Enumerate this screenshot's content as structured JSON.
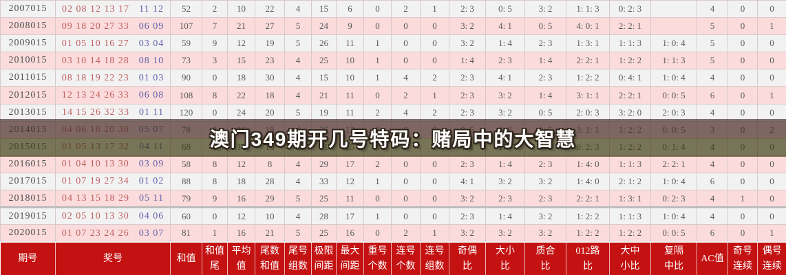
{
  "banner": {
    "text": "澳门349期开几号特码：赌局中的大智慧"
  },
  "colors": {
    "header_red": "#c41112",
    "row_plain": "#f2f2f3",
    "row_pink": "#fbdbdb",
    "red_number": "#c06060",
    "blue_number": "#6161aa",
    "banner_overlay_top": "rgba(66,46,40,0.68)",
    "banner_overlay_bottom": "rgba(62,56,14,0.68)"
  },
  "table": {
    "columns": [
      {
        "key": "period",
        "label": "期号"
      },
      {
        "key": "numbers",
        "label": "奖号"
      },
      {
        "key": "sum",
        "label": "和值"
      },
      {
        "key": "sum_tail",
        "label": "和值\n尾"
      },
      {
        "key": "avg",
        "label": "平均\n值"
      },
      {
        "key": "tail_sum",
        "label": "尾数\n和值"
      },
      {
        "key": "tail_groups",
        "label": "尾号\n组数"
      },
      {
        "key": "limit_span",
        "label": "极限\n间距"
      },
      {
        "key": "max_gap",
        "label": "最大\n间距"
      },
      {
        "key": "repeat_count",
        "label": "重号\n个数"
      },
      {
        "key": "consecutive_count",
        "label": "连号\n个数"
      },
      {
        "key": "consecutive_groups",
        "label": "连号\n组数"
      },
      {
        "key": "odd_even_ratio",
        "label": "奇偶\n比"
      },
      {
        "key": "big_small_ratio",
        "label": "大小\n比"
      },
      {
        "key": "prime_composite_ratio",
        "label": "质合\n比"
      },
      {
        "key": "route012_ratio",
        "label": "012路\n比"
      },
      {
        "key": "big_mid_small_ratio",
        "label": "大中\n小比"
      },
      {
        "key": "repeat_skip_mid_ratio",
        "label": "复隔\n中比"
      },
      {
        "key": "ac_value",
        "label": "AC值"
      },
      {
        "key": "odd_streak",
        "label": "奇号\n连续"
      },
      {
        "key": "even_streak",
        "label": "偶号\n连续"
      }
    ],
    "rows": [
      {
        "period": "2007015",
        "reds": "02 08 12 13 17",
        "blues": "11 12",
        "values": [
          "52",
          "2",
          "10",
          "22",
          "4",
          "15",
          "6",
          "0",
          "2",
          "1",
          "2: 3",
          "0: 5",
          "3: 2",
          "1: 1: 3",
          "0: 2: 3",
          "",
          "4",
          "0",
          "0"
        ]
      },
      {
        "period": "2008015",
        "reds": "09 18 20 27 33",
        "blues": "06 09",
        "values": [
          "107",
          "7",
          "21",
          "27",
          "5",
          "24",
          "9",
          "0",
          "0",
          "0",
          "3: 2",
          "4: 1",
          "0: 5",
          "4: 0: 1",
          "2: 2: 1",
          "",
          "5",
          "0",
          "1"
        ]
      },
      {
        "period": "2009015",
        "reds": "01 05 10 16 27",
        "blues": "03 04",
        "values": [
          "59",
          "9",
          "12",
          "19",
          "5",
          "26",
          "11",
          "1",
          "0",
          "0",
          "3: 2",
          "1: 4",
          "2: 3",
          "1: 3: 1",
          "1: 1: 3",
          "1: 0: 4",
          "5",
          "0",
          "0"
        ]
      },
      {
        "period": "2010015",
        "reds": "03 10 14 18 28",
        "blues": "08 10",
        "values": [
          "73",
          "3",
          "15",
          "23",
          "4",
          "25",
          "10",
          "1",
          "0",
          "0",
          "1: 4",
          "2: 3",
          "1: 4",
          "2: 2: 1",
          "1: 2: 2",
          "1: 1: 3",
          "5",
          "0",
          "0"
        ]
      },
      {
        "period": "2011015",
        "reds": "08 18 19 22 23",
        "blues": "01 03",
        "values": [
          "90",
          "0",
          "18",
          "30",
          "4",
          "15",
          "10",
          "1",
          "4",
          "2",
          "2: 3",
          "4: 1",
          "2: 3",
          "1: 2: 2",
          "0: 4: 1",
          "1: 0: 4",
          "4",
          "0",
          "0"
        ]
      },
      {
        "period": "2012015",
        "reds": "12 13 24 26 33",
        "blues": "06 08",
        "values": [
          "108",
          "8",
          "22",
          "18",
          "4",
          "21",
          "11",
          "0",
          "2",
          "1",
          "2: 3",
          "3: 2",
          "1: 4",
          "3: 1: 1",
          "2: 2: 1",
          "0: 0: 5",
          "6",
          "0",
          "1"
        ]
      },
      {
        "period": "2013015",
        "reds": "14 15 26 32 33",
        "blues": "01 11",
        "values": [
          "120",
          "0",
          "24",
          "20",
          "5",
          "19",
          "11",
          "2",
          "4",
          "2",
          "2: 3",
          "3: 2",
          "0: 5",
          "2: 0: 3",
          "3: 2: 0",
          "2: 0: 3",
          "4",
          "0",
          "0"
        ]
      },
      {
        "period": "2014015",
        "reds": "04 06 18 20 30",
        "blues": "05 07",
        "values": [
          "78",
          "8",
          "16",
          "18",
          "4",
          "26",
          "12",
          "0",
          "0",
          "0",
          "0: 5",
          "3: 2",
          "0: 5",
          "3: 1: 1",
          "1: 2: 2",
          "0: 0: 5",
          "3",
          "0",
          "2"
        ]
      },
      {
        "period": "2015015",
        "reds": "01 05 13 17 32",
        "blues": "04 11",
        "values": [
          "68",
          "8",
          "14",
          "18",
          "5",
          "31",
          "15",
          "0",
          "0",
          "0",
          "4: 1",
          "1: 4",
          "4: 1",
          "0: 2: 3",
          "1: 2: 2",
          "0: 1: 4",
          "4",
          "0",
          "0"
        ]
      },
      {
        "period": "2016015",
        "reds": "01 04 10 13 30",
        "blues": "03 09",
        "values": [
          "58",
          "8",
          "12",
          "8",
          "4",
          "29",
          "17",
          "2",
          "0",
          "0",
          "2: 3",
          "1: 4",
          "2: 3",
          "1: 4: 0",
          "1: 1: 3",
          "2: 2: 1",
          "4",
          "0",
          "0"
        ]
      },
      {
        "period": "2017015",
        "reds": "01 07 19 27 34",
        "blues": "01 02",
        "values": [
          "88",
          "8",
          "18",
          "28",
          "4",
          "33",
          "12",
          "1",
          "0",
          "0",
          "4: 1",
          "3: 2",
          "3: 2",
          "1: 4: 0",
          "2: 1: 2",
          "1: 0: 4",
          "6",
          "0",
          "0"
        ]
      },
      {
        "period": "2018015",
        "reds": "04 13 15 18 29",
        "blues": "05 11",
        "values": [
          "79",
          "9",
          "16",
          "29",
          "5",
          "25",
          "11",
          "0",
          "0",
          "0",
          "3: 2",
          "2: 3",
          "2: 3",
          "2: 2: 1",
          "1: 3: 1",
          "0: 2: 3",
          "4",
          "1",
          "0"
        ]
      },
      {
        "period": "2019015",
        "reds": "02 05 10 13 30",
        "blues": "04 06",
        "values": [
          "60",
          "0",
          "12",
          "10",
          "4",
          "28",
          "17",
          "1",
          "0",
          "0",
          "2: 3",
          "1: 4",
          "3: 2",
          "1: 2: 2",
          "1: 1: 3",
          "1: 0: 4",
          "4",
          "0",
          "0"
        ]
      },
      {
        "period": "2020015",
        "reds": "01 07 23 24 26",
        "blues": "03 07",
        "values": [
          "81",
          "1",
          "16",
          "21",
          "5",
          "25",
          "16",
          "0",
          "2",
          "1",
          "3: 2",
          "3: 2",
          "3: 2",
          "1: 2: 2",
          "1: 2: 2",
          "0: 0: 5",
          "6",
          "0",
          "1"
        ]
      }
    ]
  }
}
